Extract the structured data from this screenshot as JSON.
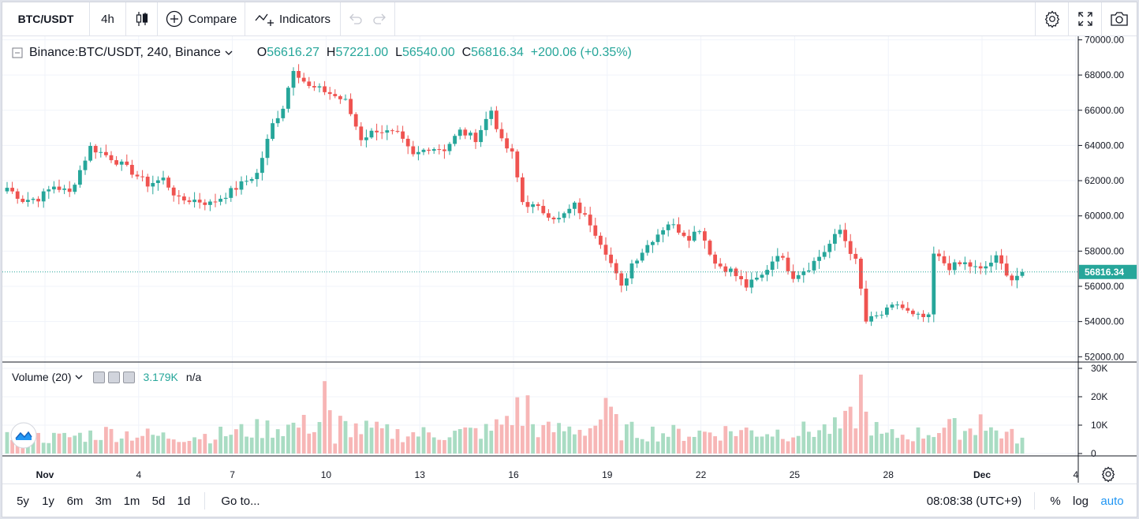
{
  "toolbar": {
    "symbol": "BTC/USDT",
    "interval": "4h",
    "compare_label": "Compare",
    "indicators_label": "Indicators"
  },
  "legend": {
    "title": "Binance:BTC/USDT, 240, Binance",
    "open_label": "O",
    "open": "56616.27",
    "high_label": "H",
    "high": "57221.00",
    "low_label": "L",
    "low": "56540.00",
    "close_label": "C",
    "close": "56816.34",
    "change": "+200.06 (+0.35%)"
  },
  "volume_legend": {
    "title": "Volume (20)",
    "value": "3.179K",
    "ma_value": "n/a"
  },
  "last_price_label": "56816.34",
  "bottom": {
    "ranges": [
      "5y",
      "1y",
      "6m",
      "3m",
      "1m",
      "5d",
      "1d"
    ],
    "goto_label": "Go to...",
    "clock": "08:08:38 (UTC+9)",
    "percent_label": "%",
    "log_label": "log",
    "auto_label": "auto"
  },
  "colors": {
    "up": "#26a69a",
    "down": "#ef5350",
    "vol_up": "#a9dcc3",
    "vol_down": "#f7b6b6",
    "accent": "#2196f3"
  },
  "chart_data": {
    "type": "candlestick",
    "price_axis": {
      "ylim": [
        51700,
        70200
      ],
      "ticks": [
        52000,
        54000,
        56000,
        58000,
        60000,
        62000,
        64000,
        66000,
        68000,
        70000
      ],
      "tick_labels": [
        "52000.00",
        "54000.00",
        "56000.00",
        "58000.00",
        "60000.00",
        "62000.00",
        "64000.00",
        "66000.00",
        "68000.00",
        "70000.00"
      ]
    },
    "volume_axis": {
      "ylim": [
        0,
        30000
      ],
      "ticks": [
        0,
        10000,
        20000,
        30000
      ],
      "tick_labels": [
        "0",
        "10K",
        "20K",
        "30K"
      ]
    },
    "x_axis": {
      "labels": [
        "Nov",
        "4",
        "7",
        "10",
        "13",
        "16",
        "19",
        "22",
        "25",
        "28",
        "Dec",
        "4"
      ],
      "label_candle_index": [
        5,
        23,
        41,
        59,
        77,
        95,
        113,
        131,
        149,
        167,
        185,
        203
      ],
      "total_candles": 196
    },
    "anchors": [
      [
        0,
        61600
      ],
      [
        3,
        60900
      ],
      [
        6,
        61000
      ],
      [
        9,
        61700
      ],
      [
        12,
        61300
      ],
      [
        16,
        63900
      ],
      [
        20,
        63300
      ],
      [
        24,
        62500
      ],
      [
        27,
        61800
      ],
      [
        30,
        62100
      ],
      [
        33,
        60900
      ],
      [
        36,
        60900
      ],
      [
        39,
        60700
      ],
      [
        42,
        61200
      ],
      [
        45,
        61800
      ],
      [
        48,
        62400
      ],
      [
        51,
        65200
      ],
      [
        53,
        66200
      ],
      [
        55,
        68400
      ],
      [
        58,
        67300
      ],
      [
        61,
        67100
      ],
      [
        65,
        66500
      ],
      [
        68,
        64400
      ],
      [
        71,
        64900
      ],
      [
        75,
        64600
      ],
      [
        78,
        63400
      ],
      [
        81,
        63900
      ],
      [
        84,
        63800
      ],
      [
        87,
        64800
      ],
      [
        90,
        64400
      ],
      [
        93,
        66000
      ],
      [
        95,
        64200
      ],
      [
        97,
        63500
      ],
      [
        99,
        60800
      ],
      [
        102,
        60400
      ],
      [
        106,
        59800
      ],
      [
        109,
        60600
      ],
      [
        112,
        59600
      ],
      [
        115,
        58000
      ],
      [
        118,
        55900
      ],
      [
        120,
        57300
      ],
      [
        124,
        58700
      ],
      [
        127,
        59600
      ],
      [
        131,
        58800
      ],
      [
        133,
        59300
      ],
      [
        136,
        57300
      ],
      [
        139,
        56900
      ],
      [
        142,
        56000
      ],
      [
        145,
        56600
      ],
      [
        148,
        57900
      ],
      [
        151,
        56600
      ],
      [
        154,
        57100
      ],
      [
        157,
        58000
      ],
      [
        160,
        59200
      ],
      [
        163,
        57400
      ],
      [
        164,
        55800
      ],
      [
        165,
        54000
      ],
      [
        168,
        54400
      ],
      [
        171,
        55000
      ],
      [
        174,
        54300
      ],
      [
        177,
        54200
      ],
      [
        178,
        57800
      ],
      [
        181,
        57100
      ],
      [
        184,
        57300
      ],
      [
        187,
        56900
      ],
      [
        190,
        57600
      ],
      [
        193,
        56400
      ],
      [
        195,
        56816
      ]
    ],
    "volume_anchors": [
      [
        0,
        6000
      ],
      [
        10,
        5500
      ],
      [
        20,
        7500
      ],
      [
        30,
        6000
      ],
      [
        40,
        6500
      ],
      [
        50,
        9000
      ],
      [
        58,
        10000
      ],
      [
        62,
        12000
      ],
      [
        66,
        9000
      ],
      [
        75,
        7000
      ],
      [
        85,
        7000
      ],
      [
        93,
        8000
      ],
      [
        97,
        14000
      ],
      [
        103,
        8000
      ],
      [
        112,
        9000
      ],
      [
        115,
        14000
      ],
      [
        118,
        8000
      ],
      [
        130,
        7000
      ],
      [
        140,
        8000
      ],
      [
        150,
        7500
      ],
      [
        160,
        9000
      ],
      [
        164,
        15000
      ],
      [
        168,
        6000
      ],
      [
        176,
        7000
      ],
      [
        180,
        9000
      ],
      [
        190,
        8000
      ],
      [
        195,
        5000
      ]
    ],
    "volume_spikes": [
      [
        61,
        25500
      ],
      [
        63,
        3500
      ],
      [
        98,
        19800
      ],
      [
        100,
        20500
      ],
      [
        116,
        16500
      ],
      [
        164,
        27800
      ],
      [
        187,
        13800
      ]
    ],
    "last_close": 56816.34
  }
}
